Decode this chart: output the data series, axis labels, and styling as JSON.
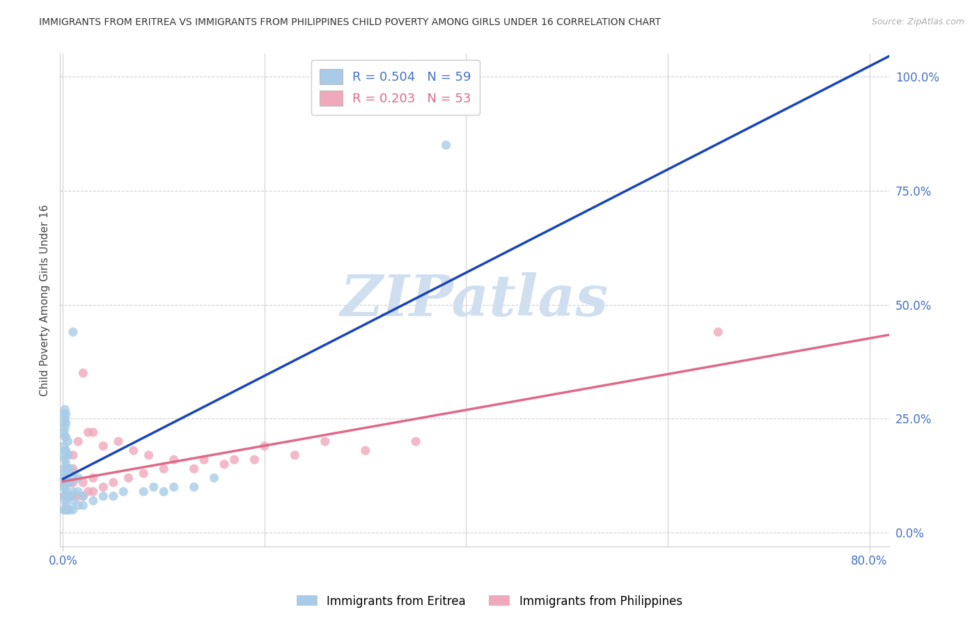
{
  "title": "IMMIGRANTS FROM ERITREA VS IMMIGRANTS FROM PHILIPPINES CHILD POVERTY AMONG GIRLS UNDER 16 CORRELATION CHART",
  "source": "Source: ZipAtlas.com",
  "ylabel": "Child Poverty Among Girls Under 16",
  "ytick_vals": [
    0.0,
    0.25,
    0.5,
    0.75,
    1.0
  ],
  "ytick_labels": [
    "0.0%",
    "25.0%",
    "50.0%",
    "75.0%",
    "100.0%"
  ],
  "xmin": -0.003,
  "xmax": 0.82,
  "ymin": -0.03,
  "ymax": 1.05,
  "legend_line1": "R = 0.504   N = 59",
  "legend_line2": "R = 0.203   N = 53",
  "color_eritrea": "#a8cce8",
  "color_philippines": "#f0a8bc",
  "color_eritrea_line": "#1845b8",
  "color_philippines_line": "#e06888",
  "color_axis_text": "#4472c4",
  "watermark_text": "ZIPatlas",
  "watermark_color": "#d0dff0",
  "label_eritrea": "Immigrants from Eritrea",
  "label_philippines": "Immigrants from Philippines",
  "eritrea_x": [
    0.001,
    0.001,
    0.001,
    0.001,
    0.001,
    0.001,
    0.001,
    0.001,
    0.001,
    0.001,
    0.002,
    0.002,
    0.002,
    0.002,
    0.002,
    0.002,
    0.002,
    0.002,
    0.002,
    0.002,
    0.003,
    0.003,
    0.003,
    0.003,
    0.003,
    0.003,
    0.003,
    0.003,
    0.005,
    0.005,
    0.005,
    0.005,
    0.005,
    0.005,
    0.007,
    0.007,
    0.007,
    0.007,
    0.01,
    0.01,
    0.01,
    0.01,
    0.01,
    0.015,
    0.015,
    0.015,
    0.02,
    0.02,
    0.03,
    0.04,
    0.05,
    0.06,
    0.08,
    0.09,
    0.1,
    0.11,
    0.13,
    0.15,
    0.38
  ],
  "eritrea_y": [
    0.05,
    0.08,
    0.1,
    0.12,
    0.14,
    0.17,
    0.19,
    0.22,
    0.24,
    0.26,
    0.05,
    0.07,
    0.1,
    0.13,
    0.16,
    0.18,
    0.21,
    0.23,
    0.25,
    0.27,
    0.06,
    0.09,
    0.12,
    0.15,
    0.18,
    0.21,
    0.24,
    0.26,
    0.05,
    0.08,
    0.11,
    0.14,
    0.17,
    0.2,
    0.05,
    0.08,
    0.11,
    0.14,
    0.05,
    0.07,
    0.09,
    0.12,
    0.44,
    0.06,
    0.09,
    0.12,
    0.06,
    0.08,
    0.07,
    0.08,
    0.08,
    0.09,
    0.09,
    0.1,
    0.09,
    0.1,
    0.1,
    0.12,
    0.85
  ],
  "philippines_x": [
    0.002,
    0.002,
    0.002,
    0.003,
    0.003,
    0.003,
    0.003,
    0.004,
    0.004,
    0.004,
    0.005,
    0.005,
    0.005,
    0.005,
    0.005,
    0.007,
    0.007,
    0.007,
    0.01,
    0.01,
    0.01,
    0.01,
    0.015,
    0.015,
    0.02,
    0.02,
    0.02,
    0.025,
    0.025,
    0.03,
    0.03,
    0.03,
    0.04,
    0.04,
    0.05,
    0.055,
    0.065,
    0.07,
    0.08,
    0.085,
    0.1,
    0.11,
    0.13,
    0.14,
    0.16,
    0.17,
    0.19,
    0.2,
    0.23,
    0.26,
    0.3,
    0.35,
    0.65
  ],
  "philippines_y": [
    0.05,
    0.08,
    0.11,
    0.05,
    0.08,
    0.11,
    0.14,
    0.05,
    0.08,
    0.11,
    0.05,
    0.08,
    0.11,
    0.14,
    0.17,
    0.08,
    0.11,
    0.14,
    0.08,
    0.11,
    0.14,
    0.17,
    0.08,
    0.2,
    0.08,
    0.11,
    0.35,
    0.09,
    0.22,
    0.09,
    0.12,
    0.22,
    0.1,
    0.19,
    0.11,
    0.2,
    0.12,
    0.18,
    0.13,
    0.17,
    0.14,
    0.16,
    0.14,
    0.16,
    0.15,
    0.16,
    0.16,
    0.19,
    0.17,
    0.2,
    0.18,
    0.2,
    0.44
  ]
}
